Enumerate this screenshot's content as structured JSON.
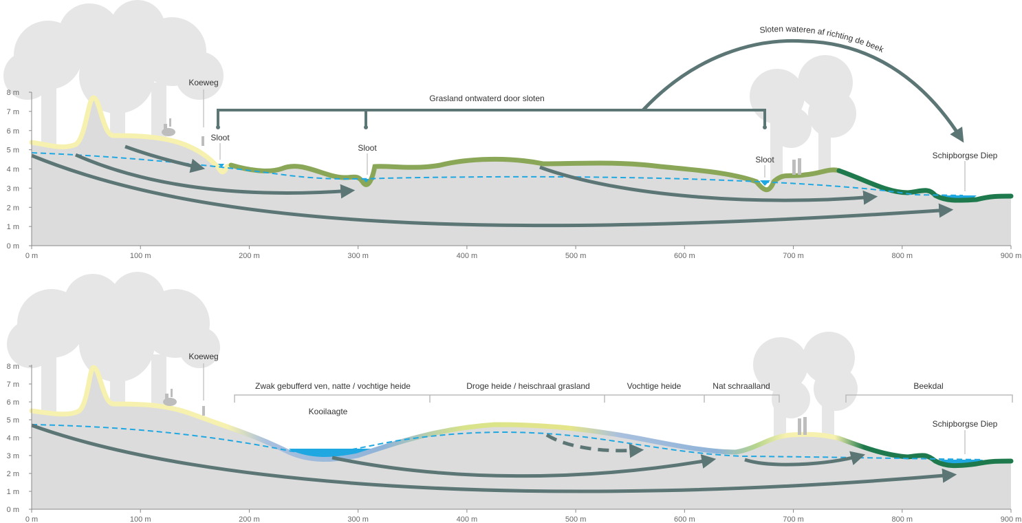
{
  "top": {
    "labels": {
      "koeweg": "Koeweg",
      "sloot_1": "Sloot",
      "sloot_2": "Sloot",
      "sloot_3": "Sloot",
      "grasland": "Grasland ontwaterd door sloten",
      "sloten_wateren": "Sloten wateren af richting de beek",
      "schipborgse": "Schipborgse Diep"
    },
    "y_ticks": [
      "0 m",
      "1 m",
      "2 m",
      "3 m",
      "4 m",
      "5 m",
      "6 m",
      "7 m",
      "8 m"
    ],
    "x_ticks": [
      "0 m",
      "100 m",
      "200 m",
      "300 m",
      "400 m",
      "500 m",
      "600 m",
      "700 m",
      "800 m",
      "900 m"
    ]
  },
  "bottom": {
    "labels": {
      "koeweg": "Koeweg",
      "kooilaagte": "Kooilaagte",
      "schipborgse": "Schipborgse Diep"
    },
    "zones": [
      "Zwak gebufferd ven, natte / vochtige heide",
      "Droge heide / heischraal grasland",
      "Vochtige heide",
      "Nat schraalland",
      "Beekdal"
    ],
    "y_ticks": [
      "0 m",
      "1 m",
      "2 m",
      "3 m",
      "4 m",
      "5 m",
      "6 m",
      "7 m",
      "8 m"
    ],
    "x_ticks": [
      "0 m",
      "100 m",
      "200 m",
      "300 m",
      "400 m",
      "500 m",
      "600 m",
      "700 m",
      "800 m",
      "900 m"
    ]
  },
  "colors": {
    "ground": "#dcdcdc",
    "tree": "#e6e6e6",
    "sand": "#f7f1b0",
    "grass": "#8aa657",
    "stream": "#1e7a4c",
    "water": "#1ea7e1",
    "flow": "#5b7675",
    "heath_wet": "#8fb3d8",
    "heath_dry": "#e5e58a"
  }
}
